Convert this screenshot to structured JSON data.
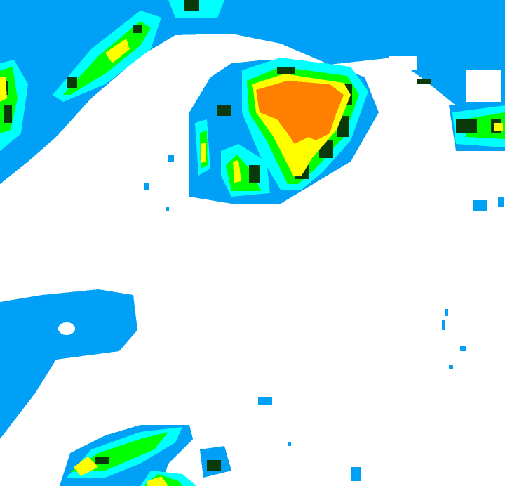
{
  "palette": {
    "background": "#ffffff",
    "light": "#00a0f6",
    "moderate": "#00ffff",
    "heavy": "#00ff00",
    "heavy_dark": "#0a3a0a",
    "intense": "#ffff00",
    "severe": "#ff8000"
  }
}
